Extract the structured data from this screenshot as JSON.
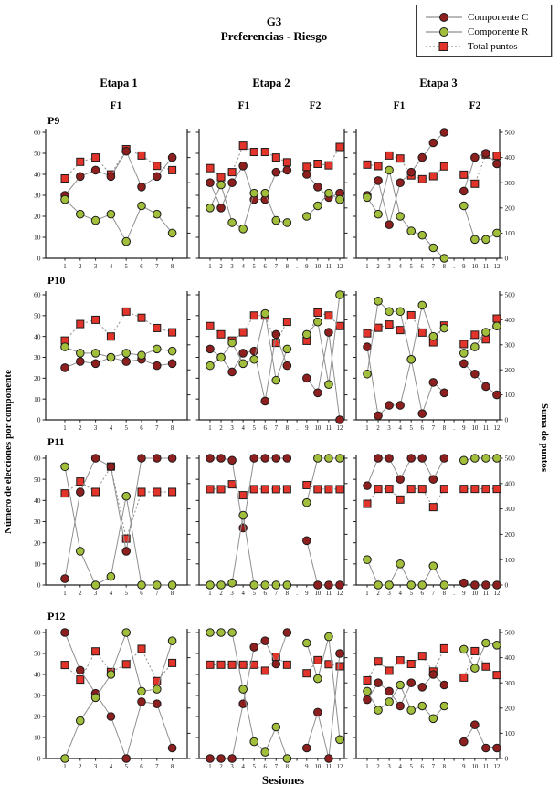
{
  "figure": {
    "group": "G3",
    "subtitle": "Preferencias - Riesgo",
    "x_label": "Sesiones"
  },
  "legend": {
    "items": [
      {
        "label": "Componente C",
        "marker": "circle",
        "line": "solid",
        "color": "#8e1f1f"
      },
      {
        "label": "Componente R",
        "marker": "circle",
        "line": "solid",
        "color": "#a2bf3c"
      },
      {
        "label": "Total puntos",
        "marker": "square",
        "line": "dotted",
        "color": "#e2342a"
      }
    ]
  },
  "axes": {
    "left_label": "Número de elecciones por componente",
    "right_label": "Suma de puntos",
    "left_ticks": [
      0,
      10,
      20,
      30,
      40,
      50,
      60
    ],
    "right_ticks": [
      0,
      100,
      200,
      300,
      400,
      500
    ],
    "left_range": [
      0,
      60
    ],
    "right_range": [
      0,
      500
    ]
  },
  "row_labels": [
    "P9",
    "P10",
    "P11",
    "P12"
  ],
  "column_headers": [
    {
      "etapa": "Etapa 1",
      "phases": [
        "F1"
      ]
    },
    {
      "etapa": "Etapa 2",
      "phases": [
        "F1",
        "F2"
      ]
    },
    {
      "etapa": "Etapa 3",
      "phases": [
        "F1",
        "F2"
      ]
    }
  ],
  "gap_label": ".",
  "style": {
    "line_color": "#8f8f8f",
    "marker_edge": "#1b1b1b",
    "spine_color": "#222222"
  },
  "chart_data": [
    {
      "type": "line",
      "row": "P9",
      "etapa": "Etapa 1",
      "phases": [
        "F1"
      ],
      "x": [
        1,
        2,
        3,
        4,
        5,
        6,
        7,
        8
      ],
      "gap_after": null,
      "series": [
        {
          "name": "Total puntos",
          "axis": "right",
          "marker": "square",
          "line": "dotted",
          "color": "#e2342a",
          "values": [
            317,
            383,
            400,
            333,
            433,
            408,
            367,
            350
          ]
        },
        {
          "name": "Componente C",
          "axis": "left",
          "marker": "circle",
          "line": "solid",
          "color": "#8e1f1f",
          "values": [
            30,
            39,
            42,
            39,
            51,
            34,
            39,
            48
          ]
        },
        {
          "name": "Componente R",
          "axis": "left",
          "marker": "circle",
          "line": "solid",
          "color": "#a2bf3c",
          "values": [
            28,
            21,
            18,
            21,
            8,
            25,
            21,
            12
          ]
        }
      ]
    },
    {
      "type": "line",
      "row": "P9",
      "etapa": "Etapa 2",
      "phases": [
        "F1",
        "F2"
      ],
      "x": [
        1,
        2,
        3,
        4,
        5,
        6,
        7,
        8,
        9,
        10,
        11,
        12
      ],
      "gap_after": 8,
      "series": [
        {
          "name": "Total puntos",
          "axis": "right",
          "marker": "square",
          "line": "dotted",
          "color": "#e2342a",
          "values": [
            358,
            322,
            342,
            447,
            422,
            422,
            400,
            381,
            363,
            375,
            369,
            442
          ]
        },
        {
          "name": "Componente C",
          "axis": "left",
          "marker": "circle",
          "line": "solid",
          "color": "#8e1f1f",
          "values": [
            36,
            24,
            36,
            44,
            28,
            28,
            41,
            42,
            40,
            34,
            29,
            31
          ]
        },
        {
          "name": "Componente R",
          "axis": "left",
          "marker": "circle",
          "line": "solid",
          "color": "#a2bf3c",
          "values": [
            24,
            35,
            17,
            14,
            31,
            31,
            18,
            17,
            20,
            25,
            31,
            28
          ]
        }
      ]
    },
    {
      "type": "line",
      "row": "P9",
      "etapa": "Etapa 3",
      "phases": [
        "F1",
        "F2"
      ],
      "x": [
        1,
        2,
        3,
        4,
        5,
        6,
        7,
        8,
        9,
        10,
        11,
        12
      ],
      "gap_after": 8,
      "series": [
        {
          "name": "Total puntos",
          "axis": "right",
          "marker": "square",
          "line": "dotted",
          "color": "#e2342a",
          "values": [
            372,
            366,
            408,
            396,
            329,
            314,
            326,
            365,
            332,
            296,
            412,
            407
          ]
        },
        {
          "name": "Componente C",
          "axis": "left",
          "marker": "circle",
          "line": "solid",
          "color": "#8e1f1f",
          "values": [
            30,
            37,
            16,
            36,
            41,
            48,
            55,
            60,
            32,
            48,
            50,
            45
          ]
        },
        {
          "name": "Componente R",
          "axis": "left",
          "marker": "circle",
          "line": "solid",
          "color": "#a2bf3c",
          "values": [
            29,
            21,
            42,
            20,
            13,
            11,
            5,
            0,
            25,
            9,
            9,
            12
          ]
        }
      ]
    },
    {
      "type": "line",
      "row": "P10",
      "etapa": "Etapa 1",
      "phases": [
        "F1"
      ],
      "x": [
        1,
        2,
        3,
        4,
        5,
        6,
        7,
        8
      ],
      "gap_after": null,
      "series": [
        {
          "name": "Total puntos",
          "axis": "right",
          "marker": "square",
          "line": "dotted",
          "color": "#e2342a",
          "values": [
            317,
            383,
            400,
            333,
            433,
            408,
            367,
            350
          ]
        },
        {
          "name": "Componente C",
          "axis": "left",
          "marker": "circle",
          "line": "solid",
          "color": "#8e1f1f",
          "values": [
            25,
            28,
            27,
            30,
            28,
            29,
            26,
            27
          ]
        },
        {
          "name": "Componente R",
          "axis": "left",
          "marker": "circle",
          "line": "solid",
          "color": "#a2bf3c",
          "values": [
            35,
            32,
            32,
            30,
            32,
            31,
            34,
            33
          ]
        }
      ]
    },
    {
      "type": "line",
      "row": "P10",
      "etapa": "Etapa 2",
      "phases": [
        "F1",
        "F2"
      ],
      "x": [
        1,
        2,
        3,
        4,
        5,
        6,
        7,
        8,
        9,
        10,
        11,
        12
      ],
      "gap_after": 8,
      "series": [
        {
          "name": "Total puntos",
          "axis": "right",
          "marker": "square",
          "line": "dotted",
          "color": "#e2342a",
          "values": [
            375,
            342,
            317,
            350,
            417,
            417,
            308,
            392,
            316,
            429,
            417,
            375
          ]
        },
        {
          "name": "Componente C",
          "axis": "left",
          "marker": "circle",
          "line": "solid",
          "color": "#8e1f1f",
          "values": [
            34,
            30,
            23,
            32,
            33,
            9,
            41,
            26,
            20,
            13,
            42,
            0
          ]
        },
        {
          "name": "Componente R",
          "axis": "left",
          "marker": "circle",
          "line": "solid",
          "color": "#a2bf3c",
          "values": [
            26,
            30,
            37,
            27,
            29,
            51,
            19,
            34,
            41,
            47,
            17,
            60
          ]
        }
      ]
    },
    {
      "type": "line",
      "row": "P10",
      "etapa": "Etapa 3",
      "phases": [
        "F1",
        "F2"
      ],
      "x": [
        1,
        2,
        3,
        4,
        5,
        6,
        7,
        8,
        9,
        10,
        11,
        12
      ],
      "gap_after": 8,
      "series": [
        {
          "name": "Total puntos",
          "axis": "right",
          "marker": "square",
          "line": "dotted",
          "color": "#e2342a",
          "values": [
            346,
            368,
            381,
            359,
            418,
            349,
            310,
            377,
            303,
            340,
            322,
            405
          ]
        },
        {
          "name": "Componente C",
          "axis": "left",
          "marker": "circle",
          "line": "solid",
          "color": "#8e1f1f",
          "values": [
            35,
            2,
            7,
            7,
            29,
            3,
            18,
            13,
            27,
            22,
            16,
            12
          ]
        },
        {
          "name": "Componente R",
          "axis": "left",
          "marker": "circle",
          "line": "solid",
          "color": "#a2bf3c",
          "values": [
            22,
            57,
            52,
            52,
            29,
            55,
            40,
            44,
            32,
            35,
            42,
            45
          ]
        }
      ]
    },
    {
      "type": "line",
      "row": "P11",
      "etapa": "Etapa 1",
      "phases": [
        "F1"
      ],
      "x": [
        1,
        2,
        3,
        4,
        5,
        6,
        7,
        8
      ],
      "gap_after": null,
      "series": [
        {
          "name": "Total puntos",
          "axis": "right",
          "marker": "square",
          "line": "dotted",
          "color": "#e2342a",
          "values": [
            361,
            408,
            367,
            467,
            183,
            367,
            367,
            367
          ]
        },
        {
          "name": "Componente C",
          "axis": "left",
          "marker": "circle",
          "line": "solid",
          "color": "#8e1f1f",
          "values": [
            3,
            44,
            60,
            56,
            16,
            60,
            60,
            60
          ]
        },
        {
          "name": "Componente R",
          "axis": "left",
          "marker": "circle",
          "line": "solid",
          "color": "#a2bf3c",
          "values": [
            56,
            16,
            0,
            4,
            42,
            0,
            0,
            0
          ]
        }
      ]
    },
    {
      "type": "line",
      "row": "P11",
      "etapa": "Etapa 2",
      "phases": [
        "F1",
        "F2"
      ],
      "x": [
        1,
        2,
        3,
        4,
        5,
        6,
        7,
        8,
        9,
        10,
        11,
        12
      ],
      "gap_after": 8,
      "series": [
        {
          "name": "Total puntos",
          "axis": "right",
          "marker": "square",
          "line": "dotted",
          "color": "#e2342a",
          "values": [
            378,
            378,
            397,
            354,
            378,
            378,
            378,
            378,
            394,
            378,
            378,
            378
          ]
        },
        {
          "name": "Componente C",
          "axis": "left",
          "marker": "circle",
          "line": "solid",
          "color": "#8e1f1f",
          "values": [
            60,
            60,
            59,
            27,
            60,
            60,
            60,
            60,
            21,
            0,
            0,
            0
          ]
        },
        {
          "name": "Componente R",
          "axis": "left",
          "marker": "circle",
          "line": "solid",
          "color": "#a2bf3c",
          "values": [
            0,
            0,
            1,
            33,
            0,
            0,
            0,
            0,
            39,
            60,
            60,
            60
          ]
        }
      ]
    },
    {
      "type": "line",
      "row": "P11",
      "etapa": "Etapa 3",
      "phases": [
        "F1",
        "F2"
      ],
      "x": [
        1,
        2,
        3,
        4,
        5,
        6,
        7,
        8,
        9,
        10,
        11,
        12
      ],
      "gap_after": 8,
      "series": [
        {
          "name": "Total puntos",
          "axis": "right",
          "marker": "square",
          "line": "dotted",
          "color": "#e2342a",
          "values": [
            320,
            379,
            379,
            337,
            379,
            379,
            307,
            379,
            379,
            379,
            379,
            379
          ]
        },
        {
          "name": "Componente C",
          "axis": "left",
          "marker": "circle",
          "line": "solid",
          "color": "#8e1f1f",
          "values": [
            47,
            60,
            60,
            50,
            60,
            60,
            50,
            60,
            1,
            0,
            0,
            0
          ]
        },
        {
          "name": "Componente R",
          "axis": "left",
          "marker": "circle",
          "line": "solid",
          "color": "#a2bf3c",
          "values": [
            12,
            0,
            0,
            10,
            0,
            0,
            9,
            0,
            59,
            60,
            60,
            60
          ]
        }
      ]
    },
    {
      "type": "line",
      "row": "P12",
      "etapa": "Etapa 1",
      "phases": [
        "F1"
      ],
      "x": [
        1,
        2,
        3,
        4,
        5,
        6,
        7,
        8
      ],
      "gap_after": null,
      "series": [
        {
          "name": "Total puntos",
          "axis": "right",
          "marker": "square",
          "line": "dotted",
          "color": "#e2342a",
          "values": [
            371,
            313,
            425,
            343,
            374,
            435,
            307,
            379
          ]
        },
        {
          "name": "Componente C",
          "axis": "left",
          "marker": "circle",
          "line": "solid",
          "color": "#8e1f1f",
          "values": [
            60,
            42,
            31,
            20,
            0,
            27,
            26,
            5
          ]
        },
        {
          "name": "Componente R",
          "axis": "left",
          "marker": "circle",
          "line": "solid",
          "color": "#a2bf3c",
          "values": [
            0,
            18,
            29,
            40,
            60,
            32,
            33,
            56
          ]
        }
      ]
    },
    {
      "type": "line",
      "row": "P12",
      "etapa": "Etapa 2",
      "phases": [
        "F1",
        "F2"
      ],
      "x": [
        1,
        2,
        3,
        4,
        5,
        6,
        7,
        8,
        9,
        10,
        11,
        12
      ],
      "gap_after": 8,
      "series": [
        {
          "name": "Total puntos",
          "axis": "right",
          "marker": "square",
          "line": "dotted",
          "color": "#e2342a",
          "values": [
            372,
            372,
            372,
            372,
            372,
            348,
            404,
            372,
            338,
            390,
            374,
            366
          ]
        },
        {
          "name": "Componente C",
          "axis": "left",
          "marker": "circle",
          "line": "solid",
          "color": "#8e1f1f",
          "values": [
            0,
            0,
            0,
            26,
            53,
            56,
            45,
            60,
            5,
            22,
            0,
            50
          ]
        },
        {
          "name": "Componente R",
          "axis": "left",
          "marker": "circle",
          "line": "solid",
          "color": "#a2bf3c",
          "values": [
            60,
            60,
            60,
            33,
            8,
            3,
            15,
            0,
            55,
            38,
            58,
            9
          ]
        }
      ]
    },
    {
      "type": "line",
      "row": "P12",
      "etapa": "Etapa 3",
      "phases": [
        "F1",
        "F2"
      ],
      "x": [
        1,
        2,
        3,
        4,
        5,
        6,
        7,
        8,
        9,
        10,
        11,
        12
      ],
      "gap_after": 8,
      "series": [
        {
          "name": "Total puntos",
          "axis": "right",
          "marker": "square",
          "line": "dotted",
          "color": "#e2342a",
          "values": [
            310,
            385,
            348,
            389,
            375,
            407,
            345,
            437,
            321,
            426,
            365,
            331
          ]
        },
        {
          "name": "Componente C",
          "axis": "left",
          "marker": "circle",
          "line": "solid",
          "color": "#8e1f1f",
          "values": [
            28,
            36,
            32,
            25,
            36,
            34,
            40,
            35,
            8,
            16,
            5,
            5
          ]
        },
        {
          "name": "Componente R",
          "axis": "left",
          "marker": "circle",
          "line": "solid",
          "color": "#a2bf3c",
          "values": [
            32,
            23,
            27,
            35,
            23,
            25,
            19,
            25,
            52,
            43,
            55,
            54
          ]
        }
      ]
    }
  ]
}
